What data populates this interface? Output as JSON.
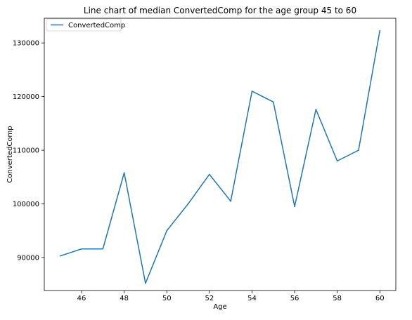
{
  "chart_data": {
    "type": "line",
    "title": "Line chart of median ConvertedComp for the age group 45 to 60",
    "xlabel": "Age",
    "ylabel": "ConvertedComp",
    "xlim": [
      44.25,
      60.75
    ],
    "ylim": [
      83850,
      134600
    ],
    "xticks": [
      46,
      48,
      50,
      52,
      54,
      56,
      58,
      60
    ],
    "yticks": [
      90000,
      100000,
      110000,
      120000,
      130000
    ],
    "xtick_labels": [
      "46",
      "48",
      "50",
      "52",
      "54",
      "56",
      "58",
      "60"
    ],
    "ytick_labels": [
      "90000",
      "100000",
      "110000",
      "120000",
      "130000"
    ],
    "grid": false,
    "legend_position": "top-left",
    "series": [
      {
        "name": "ConvertedComp",
        "color": "#1f77b4",
        "x": [
          45,
          46,
          47,
          48,
          49,
          50,
          51,
          52,
          53,
          54,
          55,
          56,
          57,
          58,
          59,
          60
        ],
        "y": [
          90300,
          91600,
          91600,
          105800,
          85200,
          95000,
          100000,
          105500,
          100500,
          121000,
          119000,
          99500,
          117600,
          108000,
          110000,
          132300
        ]
      }
    ]
  }
}
